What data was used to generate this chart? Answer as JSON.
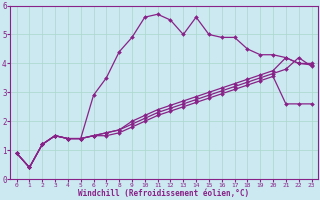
{
  "xlabel": "Windchill (Refroidissement éolien,°C)",
  "bg_color": "#cce8f0",
  "line_color": "#882288",
  "xlim": [
    -0.5,
    23.5
  ],
  "ylim": [
    0,
    6
  ],
  "xticks": [
    0,
    1,
    2,
    3,
    4,
    5,
    6,
    7,
    8,
    9,
    10,
    11,
    12,
    13,
    14,
    15,
    16,
    17,
    18,
    19,
    20,
    21,
    22,
    23
  ],
  "yticks": [
    0,
    1,
    2,
    3,
    4,
    5,
    6
  ],
  "series": [
    [
      0.9,
      0.4,
      1.2,
      1.5,
      1.4,
      1.4,
      2.9,
      3.5,
      4.4,
      4.9,
      5.6,
      5.7,
      5.5,
      5.0,
      5.6,
      5.0,
      4.9,
      4.9,
      4.5,
      4.3,
      4.3,
      4.2,
      4.0,
      4.0
    ],
    [
      0.9,
      0.4,
      1.2,
      1.5,
      1.4,
      1.4,
      1.5,
      1.5,
      1.6,
      1.8,
      2.0,
      2.2,
      2.35,
      2.5,
      2.65,
      2.8,
      2.95,
      3.1,
      3.25,
      3.4,
      3.55,
      2.6,
      2.6,
      2.6
    ],
    [
      0.9,
      0.4,
      1.2,
      1.5,
      1.4,
      1.4,
      1.5,
      1.6,
      1.7,
      2.0,
      2.2,
      2.4,
      2.55,
      2.7,
      2.85,
      3.0,
      3.15,
      3.3,
      3.45,
      3.6,
      3.75,
      4.2,
      4.0,
      3.95
    ],
    [
      0.9,
      0.4,
      1.2,
      1.5,
      1.4,
      1.4,
      1.5,
      1.6,
      1.7,
      1.9,
      2.1,
      2.3,
      2.45,
      2.6,
      2.75,
      2.9,
      3.05,
      3.2,
      3.35,
      3.5,
      3.65,
      3.8,
      4.2,
      3.9
    ]
  ],
  "marker": "D",
  "markersize": 2.0,
  "linewidth": 0.9,
  "grid_color": "#aad8cc",
  "label_color": "#882288",
  "tick_color": "#882288",
  "spine_color": "#882288",
  "xlabel_fontsize": 5.5,
  "tick_fontsize_x": 4.5,
  "tick_fontsize_y": 5.5
}
